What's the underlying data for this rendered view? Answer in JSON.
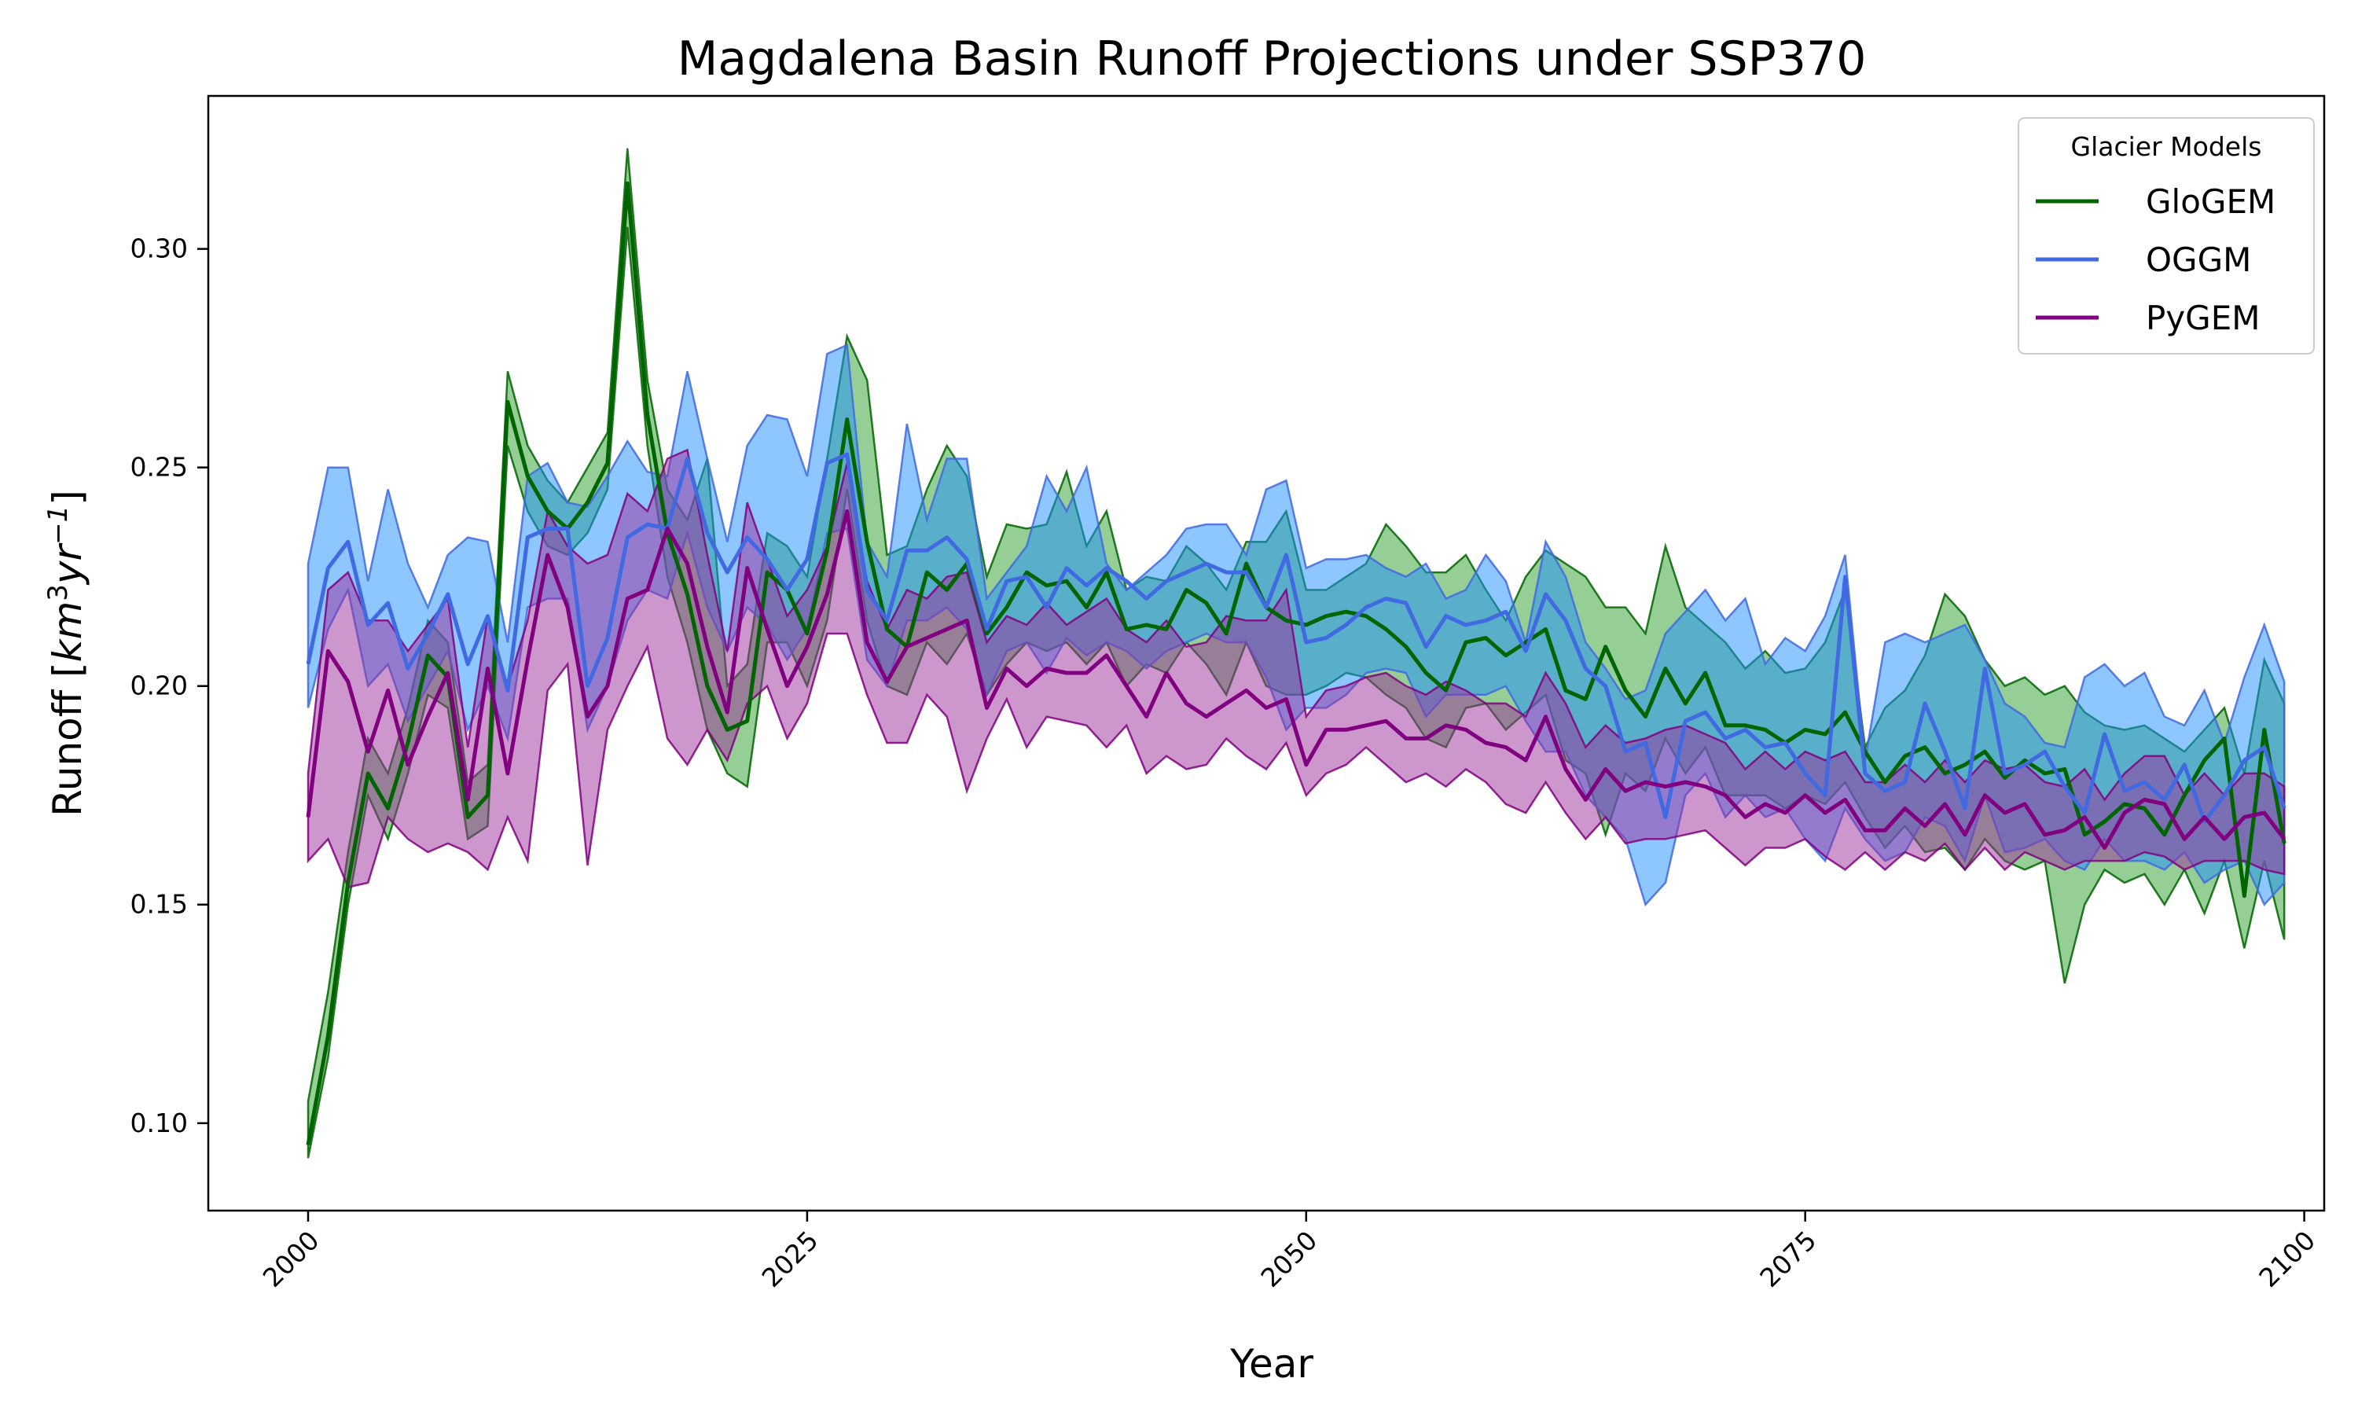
{
  "chart_data": {
    "type": "line",
    "title": "Magdalena Basin Runoff Projections under SSP370",
    "xlabel": "Year",
    "ylabel": "Runoff [km³yr⁻¹]",
    "ylabel_parts": {
      "text": "Runoff [",
      "var1": "km",
      "sup1": "3",
      "var2": "yr",
      "sup2": "−1",
      "close": "]"
    },
    "xlim": [
      1995,
      2101
    ],
    "ylim": [
      0.08,
      0.335
    ],
    "xticks": [
      2000,
      2025,
      2050,
      2075,
      2100
    ],
    "xtick_labels": [
      "2000",
      "2025",
      "2050",
      "2075",
      "2100"
    ],
    "yticks": [
      0.1,
      0.15,
      0.2,
      0.25,
      0.3
    ],
    "ytick_labels": [
      "0.10",
      "0.15",
      "0.20",
      "0.25",
      "0.30"
    ],
    "grid": false,
    "legend": {
      "title": "Glacier Models",
      "placement": "top-right"
    },
    "x": [
      2000,
      2001,
      2002,
      2003,
      2004,
      2005,
      2006,
      2007,
      2008,
      2009,
      2010,
      2011,
      2012,
      2013,
      2014,
      2015,
      2016,
      2017,
      2018,
      2019,
      2020,
      2021,
      2022,
      2023,
      2024,
      2025,
      2026,
      2027,
      2028,
      2029,
      2030,
      2031,
      2032,
      2033,
      2034,
      2035,
      2036,
      2037,
      2038,
      2039,
      2040,
      2041,
      2042,
      2043,
      2044,
      2045,
      2046,
      2047,
      2048,
      2049,
      2050,
      2051,
      2052,
      2053,
      2054,
      2055,
      2056,
      2057,
      2058,
      2059,
      2060,
      2061,
      2062,
      2063,
      2064,
      2065,
      2066,
      2067,
      2068,
      2069,
      2070,
      2071,
      2072,
      2073,
      2074,
      2075,
      2076,
      2077,
      2078,
      2079,
      2080,
      2081,
      2082,
      2083,
      2084,
      2085,
      2086,
      2087,
      2088,
      2089,
      2090,
      2091,
      2092,
      2093,
      2094,
      2095,
      2096,
      2097,
      2098,
      2099
    ],
    "series": [
      {
        "name": "GloGEM",
        "color": "#006400",
        "fill": "#2ca02c",
        "values": [
          0.095,
          0.12,
          0.155,
          0.18,
          0.172,
          0.187,
          0.207,
          0.202,
          0.17,
          0.175,
          0.265,
          0.248,
          0.24,
          0.236,
          0.242,
          0.251,
          0.315,
          0.262,
          0.235,
          0.221,
          0.2,
          0.19,
          0.192,
          0.226,
          0.222,
          0.212,
          0.231,
          0.261,
          0.233,
          0.213,
          0.209,
          0.226,
          0.222,
          0.228,
          0.212,
          0.218,
          0.226,
          0.223,
          0.224,
          0.218,
          0.226,
          0.213,
          0.214,
          0.213,
          0.222,
          0.219,
          0.212,
          0.228,
          0.218,
          0.215,
          0.214,
          0.216,
          0.217,
          0.216,
          0.213,
          0.209,
          0.203,
          0.199,
          0.21,
          0.211,
          0.207,
          0.21,
          0.213,
          0.199,
          0.197,
          0.209,
          0.199,
          0.193,
          0.204,
          0.196,
          0.203,
          0.191,
          0.191,
          0.19,
          0.187,
          0.19,
          0.189,
          0.194,
          0.185,
          0.178,
          0.184,
          0.186,
          0.18,
          0.182,
          0.185,
          0.179,
          0.183,
          0.18,
          0.181,
          0.166,
          0.169,
          0.173,
          0.172,
          0.166,
          0.175,
          0.183,
          0.188,
          0.152,
          0.19,
          0.164
        ],
        "lower": [
          0.092,
          0.115,
          0.15,
          0.175,
          0.165,
          0.18,
          0.198,
          0.195,
          0.165,
          0.168,
          0.255,
          0.24,
          0.232,
          0.23,
          0.235,
          0.245,
          0.305,
          0.255,
          0.225,
          0.21,
          0.19,
          0.18,
          0.177,
          0.21,
          0.21,
          0.2,
          0.215,
          0.245,
          0.215,
          0.2,
          0.198,
          0.21,
          0.205,
          0.212,
          0.198,
          0.205,
          0.21,
          0.208,
          0.21,
          0.205,
          0.21,
          0.2,
          0.205,
          0.203,
          0.21,
          0.205,
          0.198,
          0.21,
          0.2,
          0.198,
          0.198,
          0.2,
          0.203,
          0.202,
          0.198,
          0.195,
          0.188,
          0.186,
          0.195,
          0.196,
          0.19,
          0.194,
          0.198,
          0.183,
          0.18,
          0.166,
          0.18,
          0.176,
          0.188,
          0.18,
          0.186,
          0.175,
          0.175,
          0.175,
          0.172,
          0.175,
          0.173,
          0.178,
          0.17,
          0.163,
          0.168,
          0.162,
          0.163,
          0.158,
          0.165,
          0.16,
          0.158,
          0.16,
          0.132,
          0.15,
          0.158,
          0.155,
          0.157,
          0.15,
          0.158,
          0.148,
          0.16,
          0.14,
          0.16,
          0.142
        ],
        "upper": [
          0.105,
          0.13,
          0.162,
          0.188,
          0.18,
          0.195,
          0.215,
          0.21,
          0.178,
          0.182,
          0.272,
          0.255,
          0.247,
          0.242,
          0.25,
          0.258,
          0.323,
          0.27,
          0.245,
          0.238,
          0.252,
          0.2,
          0.205,
          0.235,
          0.232,
          0.225,
          0.252,
          0.28,
          0.27,
          0.23,
          0.232,
          0.245,
          0.255,
          0.248,
          0.225,
          0.237,
          0.236,
          0.237,
          0.249,
          0.232,
          0.24,
          0.222,
          0.225,
          0.224,
          0.232,
          0.228,
          0.222,
          0.233,
          0.233,
          0.24,
          0.222,
          0.222,
          0.225,
          0.228,
          0.237,
          0.232,
          0.226,
          0.226,
          0.23,
          0.222,
          0.215,
          0.225,
          0.231,
          0.228,
          0.225,
          0.218,
          0.218,
          0.212,
          0.232,
          0.218,
          0.214,
          0.21,
          0.204,
          0.208,
          0.203,
          0.204,
          0.21,
          0.222,
          0.186,
          0.195,
          0.199,
          0.207,
          0.221,
          0.216,
          0.206,
          0.2,
          0.202,
          0.198,
          0.2,
          0.194,
          0.191,
          0.19,
          0.191,
          0.188,
          0.185,
          0.19,
          0.195,
          0.18,
          0.206,
          0.196
        ]
      },
      {
        "name": "OGGM",
        "color": "#4169e1",
        "fill": "#1e90ff",
        "values": [
          0.205,
          0.227,
          0.233,
          0.214,
          0.219,
          0.204,
          0.212,
          0.221,
          0.205,
          0.216,
          0.199,
          0.234,
          0.236,
          0.236,
          0.2,
          0.211,
          0.234,
          0.237,
          0.236,
          0.252,
          0.235,
          0.226,
          0.234,
          0.229,
          0.222,
          0.229,
          0.251,
          0.253,
          0.222,
          0.215,
          0.231,
          0.231,
          0.234,
          0.229,
          0.213,
          0.224,
          0.225,
          0.218,
          0.227,
          0.223,
          0.227,
          0.224,
          0.22,
          0.224,
          0.226,
          0.228,
          0.226,
          0.226,
          0.218,
          0.23,
          0.21,
          0.211,
          0.214,
          0.218,
          0.22,
          0.219,
          0.209,
          0.216,
          0.214,
          0.215,
          0.217,
          0.208,
          0.221,
          0.215,
          0.204,
          0.2,
          0.185,
          0.187,
          0.17,
          0.192,
          0.194,
          0.188,
          0.19,
          0.186,
          0.187,
          0.18,
          0.175,
          0.225,
          0.18,
          0.176,
          0.178,
          0.196,
          0.185,
          0.172,
          0.204,
          0.18,
          0.182,
          0.185,
          0.177,
          0.171,
          0.189,
          0.176,
          0.178,
          0.174,
          0.182,
          0.169,
          0.175,
          0.183,
          0.186,
          0.172
        ],
        "lower": [
          0.195,
          0.213,
          0.222,
          0.2,
          0.205,
          0.192,
          0.2,
          0.208,
          0.19,
          0.2,
          0.188,
          0.218,
          0.22,
          0.22,
          0.19,
          0.2,
          0.215,
          0.222,
          0.22,
          0.235,
          0.218,
          0.208,
          0.218,
          0.214,
          0.206,
          0.213,
          0.235,
          0.236,
          0.206,
          0.2,
          0.215,
          0.215,
          0.218,
          0.213,
          0.198,
          0.208,
          0.21,
          0.203,
          0.211,
          0.207,
          0.21,
          0.208,
          0.204,
          0.208,
          0.21,
          0.212,
          0.21,
          0.21,
          0.202,
          0.19,
          0.195,
          0.195,
          0.198,
          0.203,
          0.204,
          0.203,
          0.193,
          0.198,
          0.198,
          0.198,
          0.2,
          0.192,
          0.185,
          0.185,
          0.175,
          0.17,
          0.165,
          0.15,
          0.155,
          0.175,
          0.18,
          0.17,
          0.175,
          0.17,
          0.172,
          0.165,
          0.16,
          0.172,
          0.165,
          0.16,
          0.162,
          0.17,
          0.168,
          0.16,
          0.175,
          0.162,
          0.163,
          0.165,
          0.16,
          0.158,
          0.165,
          0.16,
          0.16,
          0.158,
          0.162,
          0.155,
          0.158,
          0.16,
          0.15,
          0.155
        ],
        "upper": [
          0.228,
          0.25,
          0.25,
          0.224,
          0.245,
          0.228,
          0.218,
          0.23,
          0.234,
          0.233,
          0.21,
          0.248,
          0.251,
          0.242,
          0.241,
          0.248,
          0.256,
          0.249,
          0.248,
          0.272,
          0.252,
          0.233,
          0.255,
          0.262,
          0.261,
          0.248,
          0.276,
          0.278,
          0.233,
          0.225,
          0.26,
          0.238,
          0.252,
          0.252,
          0.22,
          0.226,
          0.232,
          0.248,
          0.24,
          0.25,
          0.228,
          0.222,
          0.226,
          0.23,
          0.236,
          0.237,
          0.237,
          0.23,
          0.245,
          0.247,
          0.227,
          0.229,
          0.229,
          0.23,
          0.227,
          0.225,
          0.228,
          0.22,
          0.222,
          0.23,
          0.224,
          0.21,
          0.233,
          0.225,
          0.21,
          0.204,
          0.197,
          0.199,
          0.212,
          0.217,
          0.222,
          0.215,
          0.22,
          0.205,
          0.211,
          0.208,
          0.216,
          0.23,
          0.183,
          0.21,
          0.212,
          0.21,
          0.212,
          0.214,
          0.206,
          0.196,
          0.193,
          0.187,
          0.186,
          0.202,
          0.205,
          0.2,
          0.203,
          0.193,
          0.191,
          0.199,
          0.187,
          0.202,
          0.214,
          0.201
        ]
      },
      {
        "name": "PyGEM",
        "color": "#800080",
        "fill": "#9b309b",
        "values": [
          0.17,
          0.208,
          0.201,
          0.185,
          0.199,
          0.182,
          0.193,
          0.203,
          0.174,
          0.204,
          0.18,
          0.206,
          0.23,
          0.218,
          0.193,
          0.2,
          0.22,
          0.222,
          0.236,
          0.228,
          0.209,
          0.194,
          0.227,
          0.213,
          0.2,
          0.209,
          0.221,
          0.24,
          0.21,
          0.201,
          0.209,
          0.211,
          0.213,
          0.215,
          0.195,
          0.204,
          0.2,
          0.204,
          0.203,
          0.203,
          0.207,
          0.2,
          0.193,
          0.203,
          0.196,
          0.193,
          0.196,
          0.199,
          0.195,
          0.197,
          0.182,
          0.19,
          0.19,
          0.191,
          0.192,
          0.188,
          0.188,
          0.191,
          0.19,
          0.187,
          0.186,
          0.183,
          0.193,
          0.181,
          0.174,
          0.181,
          0.176,
          0.178,
          0.177,
          0.178,
          0.177,
          0.175,
          0.17,
          0.173,
          0.171,
          0.175,
          0.171,
          0.174,
          0.167,
          0.167,
          0.172,
          0.168,
          0.173,
          0.166,
          0.175,
          0.171,
          0.173,
          0.166,
          0.167,
          0.17,
          0.163,
          0.171,
          0.174,
          0.173,
          0.165,
          0.17,
          0.165,
          0.17,
          0.171,
          0.165
        ],
        "lower": [
          0.16,
          0.165,
          0.154,
          0.155,
          0.17,
          0.165,
          0.162,
          0.164,
          0.162,
          0.158,
          0.17,
          0.16,
          0.199,
          0.205,
          0.159,
          0.19,
          0.2,
          0.209,
          0.188,
          0.182,
          0.19,
          0.183,
          0.196,
          0.2,
          0.188,
          0.196,
          0.212,
          0.212,
          0.198,
          0.187,
          0.187,
          0.198,
          0.193,
          0.176,
          0.188,
          0.197,
          0.186,
          0.193,
          0.192,
          0.191,
          0.186,
          0.191,
          0.18,
          0.184,
          0.181,
          0.182,
          0.188,
          0.184,
          0.181,
          0.187,
          0.175,
          0.18,
          0.182,
          0.186,
          0.182,
          0.178,
          0.18,
          0.177,
          0.181,
          0.178,
          0.173,
          0.171,
          0.178,
          0.171,
          0.165,
          0.17,
          0.164,
          0.165,
          0.165,
          0.166,
          0.167,
          0.163,
          0.159,
          0.163,
          0.163,
          0.165,
          0.161,
          0.158,
          0.162,
          0.158,
          0.162,
          0.16,
          0.164,
          0.158,
          0.163,
          0.158,
          0.162,
          0.16,
          0.158,
          0.16,
          0.16,
          0.16,
          0.162,
          0.161,
          0.158,
          0.16,
          0.16,
          0.16,
          0.158,
          0.157
        ],
        "upper": [
          0.18,
          0.222,
          0.226,
          0.215,
          0.215,
          0.208,
          0.214,
          0.22,
          0.186,
          0.216,
          0.2,
          0.215,
          0.24,
          0.232,
          0.228,
          0.23,
          0.244,
          0.24,
          0.252,
          0.254,
          0.23,
          0.208,
          0.242,
          0.229,
          0.216,
          0.222,
          0.232,
          0.251,
          0.224,
          0.213,
          0.222,
          0.22,
          0.225,
          0.226,
          0.21,
          0.216,
          0.214,
          0.219,
          0.214,
          0.217,
          0.22,
          0.213,
          0.21,
          0.215,
          0.209,
          0.21,
          0.216,
          0.215,
          0.215,
          0.222,
          0.193,
          0.199,
          0.2,
          0.202,
          0.203,
          0.2,
          0.198,
          0.201,
          0.199,
          0.196,
          0.196,
          0.193,
          0.203,
          0.196,
          0.186,
          0.191,
          0.187,
          0.188,
          0.19,
          0.191,
          0.189,
          0.187,
          0.181,
          0.185,
          0.181,
          0.185,
          0.183,
          0.185,
          0.178,
          0.178,
          0.182,
          0.178,
          0.183,
          0.178,
          0.183,
          0.181,
          0.182,
          0.178,
          0.177,
          0.181,
          0.174,
          0.18,
          0.184,
          0.184,
          0.175,
          0.18,
          0.175,
          0.18,
          0.18,
          0.177
        ]
      }
    ]
  }
}
